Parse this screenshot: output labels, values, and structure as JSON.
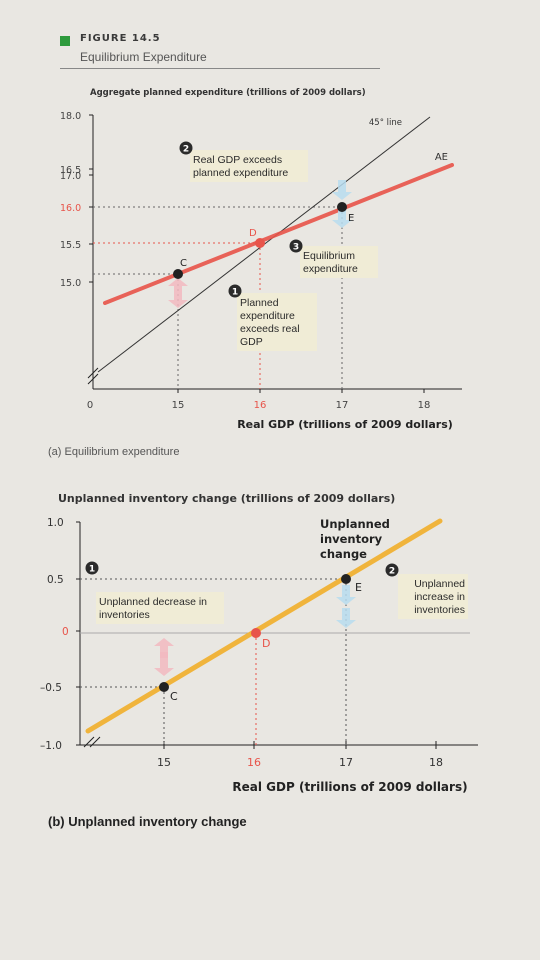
{
  "figure": {
    "number": "FIGURE 14.5",
    "title": "Equilibrium Expenditure"
  },
  "colors": {
    "green_square": "#2e9a3c",
    "ae_line": "#e8544a",
    "inventory_line": "#f0b43c",
    "arrow_blue": "#b7dcef",
    "arrow_pink": "#f2b9c0",
    "label_box": "#f0ecd6",
    "point_d": "#e8544a"
  },
  "chart_data": [
    {
      "type": "line",
      "title": "(a) Equilibrium expenditure",
      "ylabel": "Aggregate planned expenditure (trillions of 2009 dollars)",
      "xlabel": "Real GDP (trillions of 2009 dollars)",
      "x_ticks": [
        "0",
        "15",
        "16",
        "17",
        "18"
      ],
      "y_ticks": [
        "15.0",
        "15.5",
        "16.0",
        "16.5",
        "17.0",
        "18.0"
      ],
      "xlim": [
        14.2,
        18.2
      ],
      "ylim": [
        14.6,
        18.0
      ],
      "series": [
        {
          "name": "AE",
          "x": [
            14.3,
            18.0
          ],
          "y": [
            14.97,
            17.2
          ]
        },
        {
          "name": "45° line",
          "x": [
            14.6,
            18.0
          ],
          "y": [
            14.6,
            18.0
          ]
        }
      ],
      "points": [
        {
          "label": "C",
          "x": 15,
          "y": 15.5
        },
        {
          "label": "D",
          "x": 16,
          "y": 16.0
        },
        {
          "label": "E",
          "x": 17,
          "y": 16.5
        }
      ],
      "annotations": [
        {
          "number": "1",
          "text": "Planned expenditure exceeds real GDP"
        },
        {
          "number": "2",
          "text": "Real GDP exceeds planned expenditure"
        },
        {
          "number": "3",
          "text": "Equilibrium expenditure"
        }
      ]
    },
    {
      "type": "line",
      "title": "(b) Unplanned inventory change",
      "ylabel": "Unplanned inventory change (trillions of 2009 dollars)",
      "xlabel": "Real GDP (trillions of 2009 dollars)",
      "x_ticks": [
        "15",
        "16",
        "17",
        "18"
      ],
      "y_ticks": [
        "1.0",
        "0.5",
        "0",
        "-0.5",
        "-1.0"
      ],
      "xlim": [
        14.2,
        18.2
      ],
      "ylim": [
        -1.0,
        1.0
      ],
      "series": [
        {
          "name": "Unplanned inventory change",
          "x": [
            14.3,
            18.0
          ],
          "y": [
            -0.85,
            1.0
          ]
        }
      ],
      "points": [
        {
          "label": "C",
          "x": 15,
          "y": -0.5
        },
        {
          "label": "D",
          "x": 16,
          "y": 0
        },
        {
          "label": "E",
          "x": 17,
          "y": 0.5
        }
      ],
      "annotations": [
        {
          "number": "1",
          "text": "Unplanned decrease in inventories"
        },
        {
          "number": "2",
          "text": "Unplanned increase in inventories"
        }
      ]
    }
  ]
}
